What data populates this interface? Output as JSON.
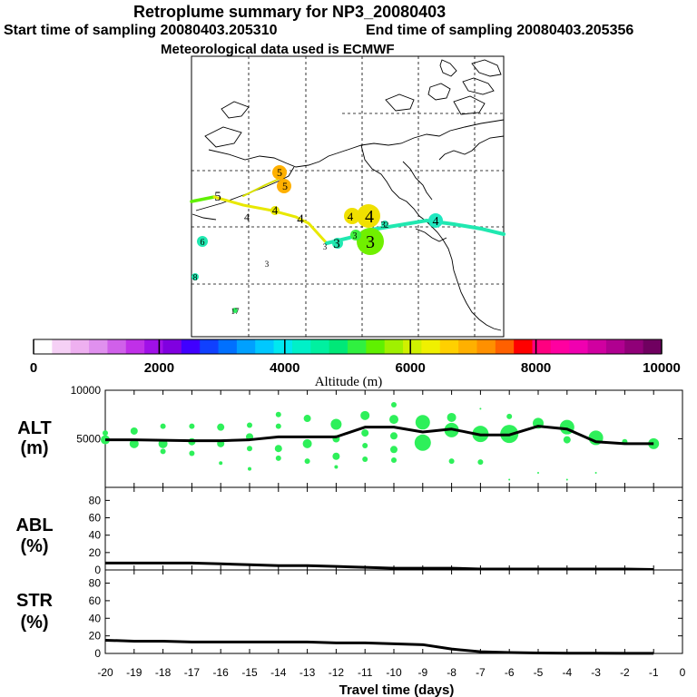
{
  "header": {
    "title": "Retroplume summary for NP3_20080403",
    "start_time": "Start time of sampling 20080403.205310",
    "end_time": "End time of sampling 20080403.205356",
    "met": "Meteorological data used is ECMWF"
  },
  "colorbar": {
    "label": "Altitude (m)",
    "ticks": [
      0,
      2000,
      4000,
      6000,
      8000,
      10000
    ],
    "colors": [
      "#ffffff",
      "#f5d0f5",
      "#eeb0f0",
      "#e090ee",
      "#d060ea",
      "#c030e8",
      "#a010e8",
      "#8000e0",
      "#4000ff",
      "#1040ff",
      "#0070ff",
      "#00a0ff",
      "#00c8ff",
      "#00e8f0",
      "#00f0c8",
      "#00f0a0",
      "#00e878",
      "#30f040",
      "#60f000",
      "#a0f000",
      "#d0f000",
      "#f0f000",
      "#ffd000",
      "#ffb000",
      "#ff9000",
      "#ff6000",
      "#ff0000",
      "#ff0080",
      "#ff00a0",
      "#f000b0",
      "#d000a0",
      "#b00090",
      "#900078",
      "#700060"
    ]
  },
  "map": {
    "labels": [
      {
        "text": "5",
        "size": 15,
        "color": "#000"
      },
      {
        "text": "5",
        "size": 12,
        "color": "#000"
      },
      {
        "text": "5",
        "size": 12,
        "color": "#000"
      },
      {
        "text": "4",
        "size": 12,
        "color": "#000"
      },
      {
        "text": "4",
        "size": 13,
        "color": "#000"
      },
      {
        "text": "4",
        "size": 15,
        "color": "#000"
      },
      {
        "text": "4",
        "size": 13,
        "color": "#000"
      },
      {
        "text": "4",
        "size": 20,
        "color": "#000"
      },
      {
        "text": "4",
        "size": 14,
        "color": "#000"
      },
      {
        "text": "3",
        "size": 9,
        "color": "#000"
      },
      {
        "text": "3",
        "size": 15,
        "color": "#000"
      },
      {
        "text": "3",
        "size": 10,
        "color": "#000"
      },
      {
        "text": "3",
        "size": 20,
        "color": "#000"
      },
      {
        "text": "3",
        "size": 11,
        "color": "#000"
      },
      {
        "text": "3",
        "size": 9,
        "color": "#000"
      },
      {
        "text": "2",
        "size": 9,
        "color": "#000"
      },
      {
        "text": "6",
        "size": 10,
        "color": "#000"
      },
      {
        "text": "8",
        "size": 10,
        "color": "#000"
      },
      {
        "text": "17",
        "size": 9,
        "color": "#000"
      }
    ]
  },
  "chart_data": [
    {
      "type": "line",
      "panel": "ALT",
      "ylabel_line1": "ALT",
      "ylabel_line2": "(m)",
      "ylim": [
        0,
        10000
      ],
      "yticks": [
        5000,
        10000
      ],
      "x": [
        -20,
        -19,
        -18,
        -17,
        -16,
        -15,
        -14,
        -13,
        -12,
        -11,
        -10,
        -9,
        -8,
        -7,
        -6,
        -5,
        -4,
        -3,
        -2,
        -1
      ],
      "values": [
        4900,
        4900,
        4850,
        4800,
        4800,
        4900,
        5200,
        5200,
        5200,
        6200,
        6200,
        5700,
        6000,
        5400,
        5400,
        6300,
        6000,
        4700,
        4500,
        4500
      ],
      "scatter": [
        {
          "x": -20,
          "y": 4900,
          "r": 5
        },
        {
          "x": -20,
          "y": 5600,
          "r": 3
        },
        {
          "x": -19,
          "y": 5800,
          "r": 4
        },
        {
          "x": -19,
          "y": 4500,
          "r": 5
        },
        {
          "x": -18,
          "y": 6300,
          "r": 3
        },
        {
          "x": -18,
          "y": 4500,
          "r": 5
        },
        {
          "x": -18,
          "y": 3700,
          "r": 3
        },
        {
          "x": -17,
          "y": 6300,
          "r": 3
        },
        {
          "x": -17,
          "y": 4700,
          "r": 4
        },
        {
          "x": -17,
          "y": 3500,
          "r": 3
        },
        {
          "x": -16,
          "y": 6200,
          "r": 4
        },
        {
          "x": -16,
          "y": 4500,
          "r": 4
        },
        {
          "x": -16,
          "y": 2500,
          "r": 2
        },
        {
          "x": -15,
          "y": 6400,
          "r": 3
        },
        {
          "x": -15,
          "y": 5200,
          "r": 4
        },
        {
          "x": -15,
          "y": 4000,
          "r": 3
        },
        {
          "x": -15,
          "y": 1900,
          "r": 2
        },
        {
          "x": -14,
          "y": 7500,
          "r": 3
        },
        {
          "x": -14,
          "y": 6300,
          "r": 3
        },
        {
          "x": -14,
          "y": 4000,
          "r": 4
        },
        {
          "x": -14,
          "y": 3000,
          "r": 3
        },
        {
          "x": -13,
          "y": 7100,
          "r": 4
        },
        {
          "x": -13,
          "y": 4500,
          "r": 5
        },
        {
          "x": -13,
          "y": 2700,
          "r": 3
        },
        {
          "x": -12,
          "y": 6500,
          "r": 6
        },
        {
          "x": -12,
          "y": 5000,
          "r": 4
        },
        {
          "x": -12,
          "y": 3200,
          "r": 4
        },
        {
          "x": -12,
          "y": 2100,
          "r": 2
        },
        {
          "x": -11,
          "y": 7400,
          "r": 5
        },
        {
          "x": -11,
          "y": 5600,
          "r": 4
        },
        {
          "x": -11,
          "y": 4300,
          "r": 3
        },
        {
          "x": -11,
          "y": 2900,
          "r": 3
        },
        {
          "x": -10,
          "y": 8500,
          "r": 3
        },
        {
          "x": -10,
          "y": 7000,
          "r": 5
        },
        {
          "x": -10,
          "y": 5300,
          "r": 4
        },
        {
          "x": -10,
          "y": 3900,
          "r": 4
        },
        {
          "x": -10,
          "y": 2800,
          "r": 3
        },
        {
          "x": -9,
          "y": 6700,
          "r": 8
        },
        {
          "x": -9,
          "y": 4600,
          "r": 9
        },
        {
          "x": -8,
          "y": 7200,
          "r": 5
        },
        {
          "x": -8,
          "y": 5900,
          "r": 8
        },
        {
          "x": -8,
          "y": 2700,
          "r": 3
        },
        {
          "x": -7,
          "y": 5500,
          "r": 9
        },
        {
          "x": -7,
          "y": 2600,
          "r": 3
        },
        {
          "x": -7,
          "y": 8100,
          "r": 1
        },
        {
          "x": -6,
          "y": 5500,
          "r": 10
        },
        {
          "x": -6,
          "y": 7300,
          "r": 3
        },
        {
          "x": -6,
          "y": 800,
          "r": 1
        },
        {
          "x": -5,
          "y": 6600,
          "r": 6
        },
        {
          "x": -5,
          "y": 1500,
          "r": 1
        },
        {
          "x": -4,
          "y": 6200,
          "r": 8
        },
        {
          "x": -4,
          "y": 4900,
          "r": 4
        },
        {
          "x": -4,
          "y": 800,
          "r": 1
        },
        {
          "x": -3,
          "y": 5100,
          "r": 8
        },
        {
          "x": -3,
          "y": 1500,
          "r": 1
        },
        {
          "x": -2,
          "y": 4700,
          "r": 3
        },
        {
          "x": -1,
          "y": 4500,
          "r": 6
        }
      ]
    },
    {
      "type": "line",
      "panel": "ABL",
      "ylabel_line1": "ABL",
      "ylabel_line2": "(%)",
      "ylim": [
        0,
        95
      ],
      "yticks": [
        0,
        20,
        40,
        60,
        80
      ],
      "x": [
        -20,
        -19,
        -18,
        -17,
        -16,
        -15,
        -14,
        -13,
        -12,
        -11,
        -10,
        -9,
        -8,
        -7,
        -6,
        -5,
        -4,
        -3,
        -2,
        -1
      ],
      "values": [
        8,
        8,
        8,
        8,
        7,
        6,
        5,
        5,
        4,
        3,
        2,
        2,
        2,
        1,
        1,
        1,
        1,
        1,
        1,
        0.5
      ]
    },
    {
      "type": "line",
      "panel": "STR",
      "ylabel_line1": "STR",
      "ylabel_line2": "(%)",
      "ylim": [
        0,
        95
      ],
      "yticks": [
        0,
        20,
        40,
        60,
        80
      ],
      "x": [
        -20,
        -19,
        -18,
        -17,
        -16,
        -15,
        -14,
        -13,
        -12,
        -11,
        -10,
        -9,
        -8,
        -7,
        -6,
        -5,
        -4,
        -3,
        -2,
        -1
      ],
      "values": [
        15,
        14,
        14,
        13,
        13,
        13,
        13,
        13,
        12,
        12,
        11,
        10,
        5,
        2,
        1,
        0.5,
        0.3,
        0.2,
        0.1,
        0.1
      ]
    }
  ],
  "xaxis": {
    "ticks": [
      "-20",
      "-19",
      "-18",
      "-17",
      "-16",
      "-15",
      "-14",
      "-13",
      "-12",
      "-11",
      "-10",
      "-9",
      "-8",
      "-7",
      "-6",
      "-5",
      "-4",
      "-3",
      "-2",
      "-1",
      "0"
    ],
    "label": "Travel time (days)"
  }
}
